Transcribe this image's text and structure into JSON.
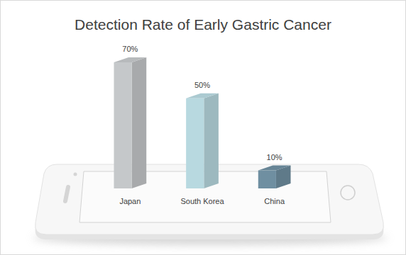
{
  "chart_data": {
    "type": "bar",
    "title": "Detection Rate of Early Gastric Cancer",
    "categories": [
      "Japan",
      "South Korea",
      "China"
    ],
    "values": [
      70,
      50,
      10
    ],
    "value_labels": [
      "70%",
      "50%",
      "10%"
    ],
    "colors": [
      "#c5c8ca",
      "#b8d9e0",
      "#6f8fa1"
    ],
    "data_labels": true,
    "tick_labels": "x",
    "grid": false
  }
}
